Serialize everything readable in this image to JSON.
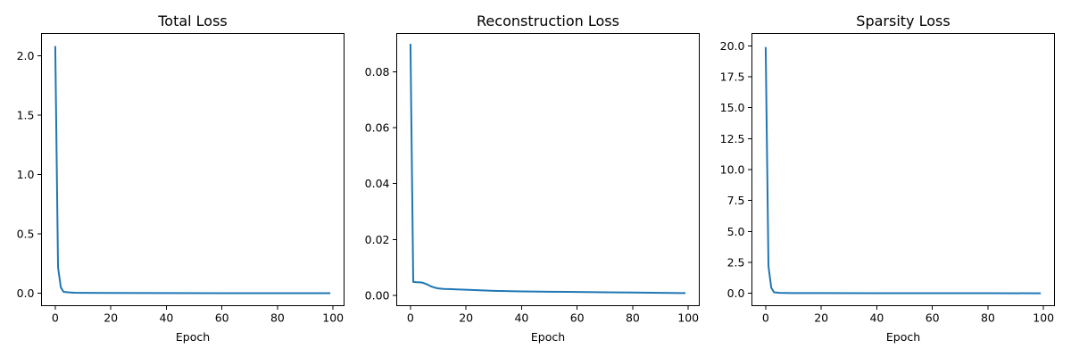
{
  "style": {
    "line_color": "#1f77b4"
  },
  "chart_data": [
    {
      "type": "line",
      "title": "Total Loss",
      "xlabel": "Epoch",
      "ylabel": "",
      "grid": false,
      "xlim": [
        -4.95,
        103.95
      ],
      "ylim": [
        -0.104,
        2.186
      ],
      "xticks": [
        0,
        20,
        40,
        60,
        80,
        100
      ],
      "xtick_labels": [
        "0",
        "20",
        "40",
        "60",
        "80",
        "100"
      ],
      "yticks": [
        0.0,
        0.5,
        1.0,
        1.5,
        2.0
      ],
      "ytick_labels": [
        "0.0",
        "0.5",
        "1.0",
        "1.5",
        "2.0"
      ],
      "series": [
        {
          "x": [
            0,
            1,
            2,
            3,
            5,
            7,
            10,
            20,
            40,
            60,
            80,
            99
          ],
          "y": [
            2.08,
            0.22,
            0.05,
            0.012,
            0.008,
            0.005,
            0.004,
            0.003,
            0.002,
            0.0015,
            0.0012,
            0.001
          ]
        }
      ]
    },
    {
      "type": "line",
      "title": "Reconstruction Loss",
      "xlabel": "Epoch",
      "ylabel": "",
      "grid": false,
      "xlim": [
        -4.95,
        103.95
      ],
      "ylim": [
        -0.0037,
        0.0937
      ],
      "xticks": [
        0,
        20,
        40,
        60,
        80,
        100
      ],
      "xtick_labels": [
        "0",
        "20",
        "40",
        "60",
        "80",
        "100"
      ],
      "yticks": [
        0.0,
        0.02,
        0.04,
        0.06,
        0.08
      ],
      "ytick_labels": [
        "0.00",
        "0.02",
        "0.04",
        "0.06",
        "0.08"
      ],
      "series": [
        {
          "x": [
            0,
            1,
            2,
            3,
            4,
            5,
            6,
            7,
            8,
            9,
            10,
            12,
            15,
            20,
            25,
            30,
            40,
            50,
            60,
            70,
            80,
            90,
            99
          ],
          "y": [
            0.09,
            0.0048,
            0.0047,
            0.0047,
            0.0046,
            0.0043,
            0.0039,
            0.0034,
            0.003,
            0.0027,
            0.0025,
            0.0023,
            0.0022,
            0.002,
            0.0018,
            0.0016,
            0.0014,
            0.0013,
            0.0012,
            0.0011,
            0.001,
            0.0009,
            0.0008
          ]
        }
      ]
    },
    {
      "type": "line",
      "title": "Sparsity Loss",
      "xlabel": "Epoch",
      "ylabel": "",
      "grid": false,
      "xlim": [
        -4.95,
        103.95
      ],
      "ylim": [
        -1.0,
        21.0
      ],
      "xticks": [
        0,
        20,
        40,
        60,
        80,
        100
      ],
      "xtick_labels": [
        "0",
        "20",
        "40",
        "60",
        "80",
        "100"
      ],
      "yticks": [
        0.0,
        2.5,
        5.0,
        7.5,
        10.0,
        12.5,
        15.0,
        17.5,
        20.0
      ],
      "ytick_labels": [
        "0.0",
        "2.5",
        "5.0",
        "7.5",
        "10.0",
        "12.5",
        "15.0",
        "17.5",
        "20.0"
      ],
      "series": [
        {
          "x": [
            0,
            1,
            2,
            3,
            5,
            7,
            10,
            20,
            40,
            60,
            80,
            99
          ],
          "y": [
            19.9,
            2.2,
            0.45,
            0.08,
            0.04,
            0.03,
            0.02,
            0.015,
            0.01,
            0.008,
            0.006,
            0.005
          ]
        }
      ]
    }
  ]
}
